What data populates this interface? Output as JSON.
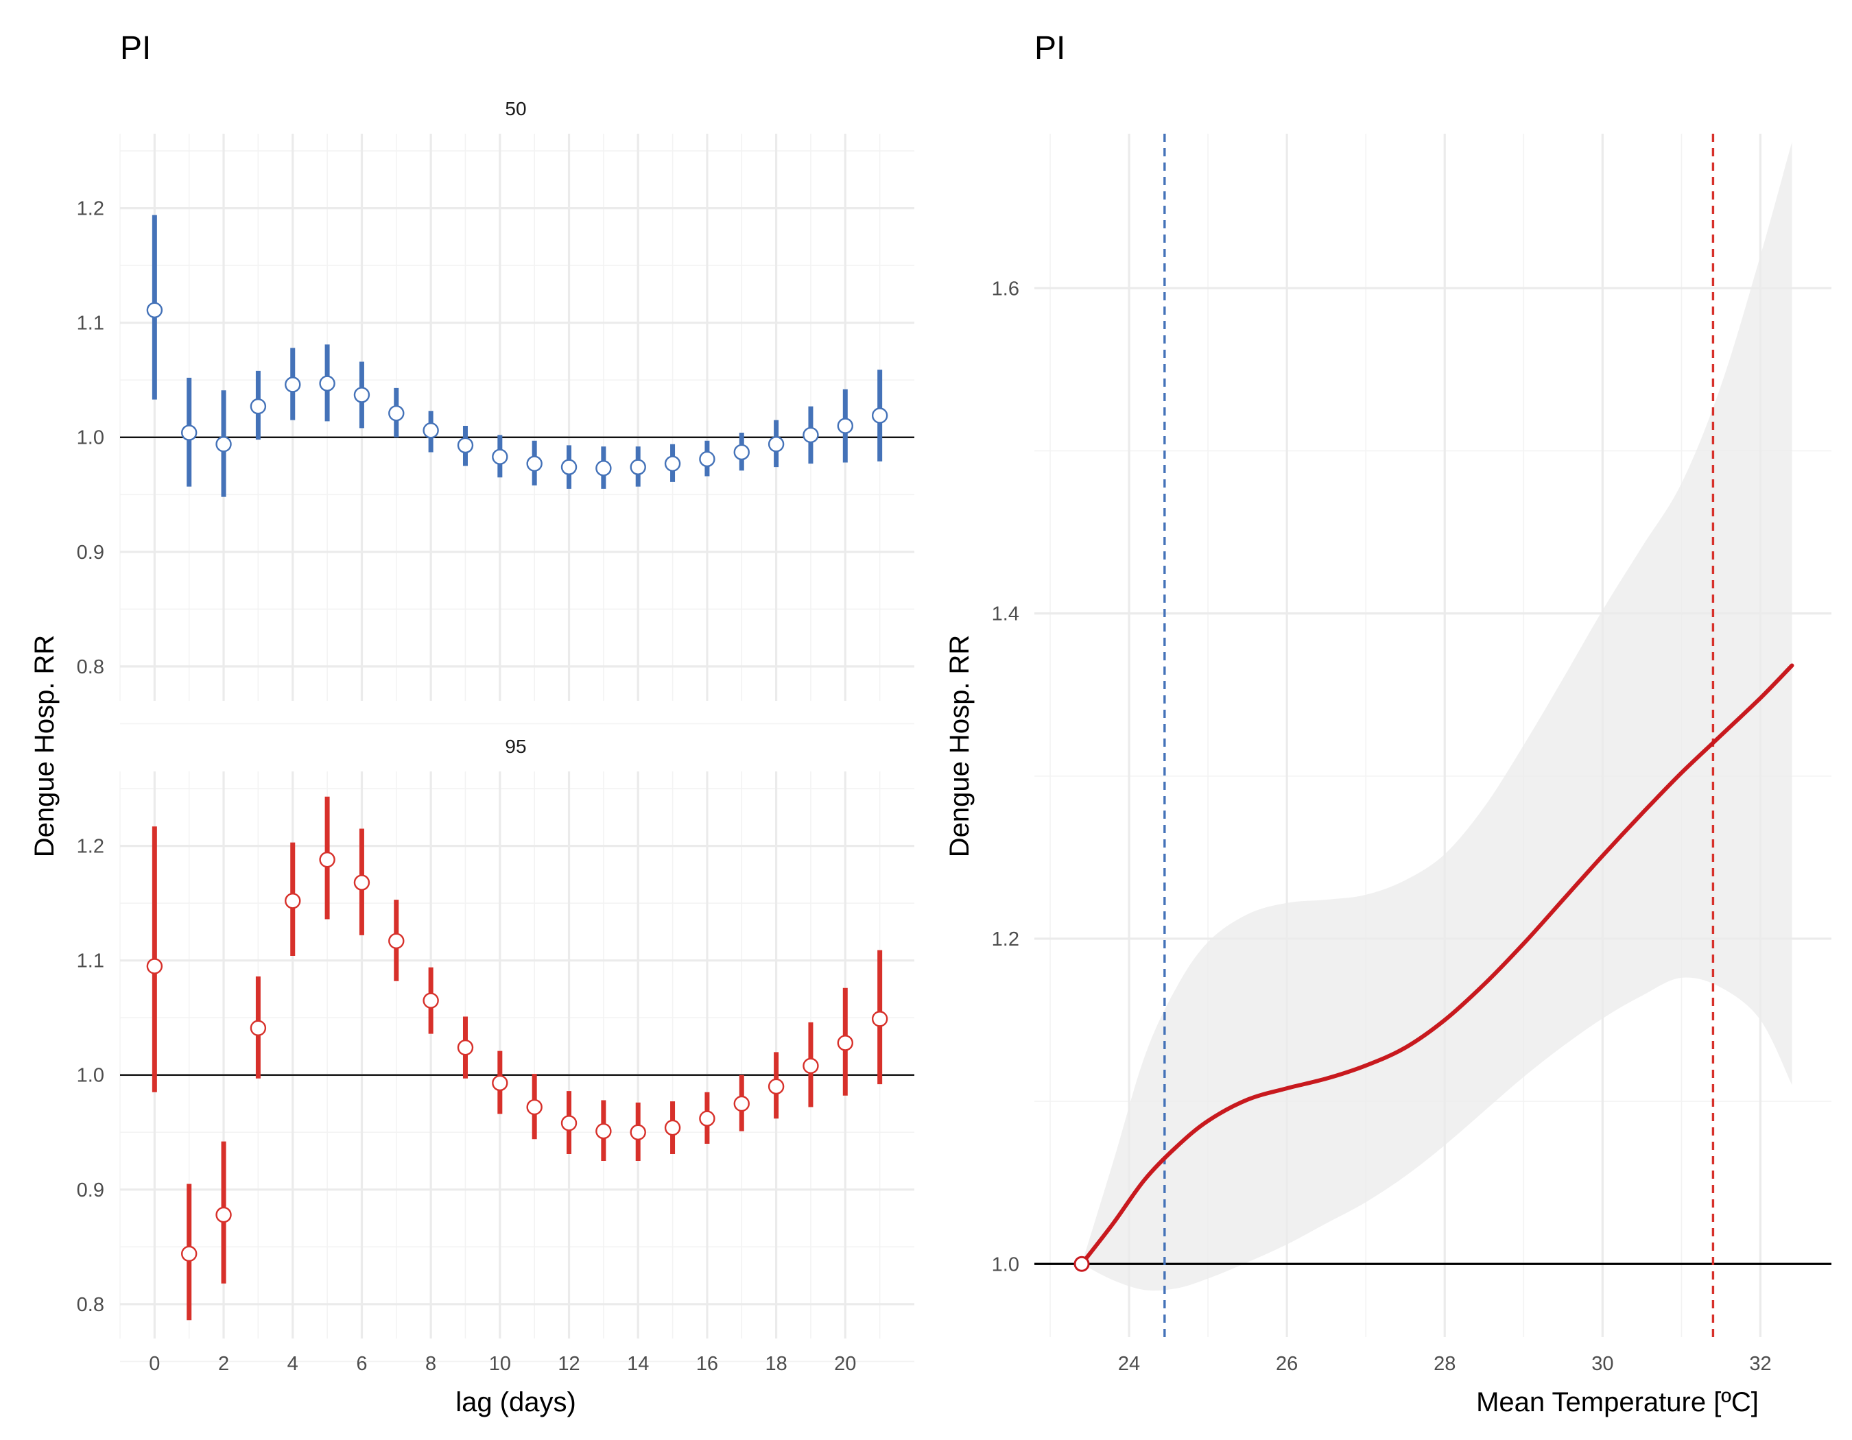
{
  "chart_data": [
    {
      "type": "errorbar",
      "title": "PI",
      "xlabel": "lag (days)",
      "ylabel": "Dengue Hosp. RR",
      "x_ticks": [
        0,
        2,
        4,
        6,
        8,
        10,
        12,
        14,
        16,
        18,
        20
      ],
      "y_ticks": [
        0.8,
        0.9,
        1.0,
        1.1,
        1.2
      ],
      "xlim": [
        -1,
        22
      ],
      "ylim": [
        0.77,
        1.265
      ],
      "reference_line": 1.0,
      "facets": [
        {
          "label": "50",
          "color": "#4472b8",
          "lag": [
            0,
            1,
            2,
            3,
            4,
            5,
            6,
            7,
            8,
            9,
            10,
            11,
            12,
            13,
            14,
            15,
            16,
            17,
            18,
            19,
            20,
            21
          ],
          "rr": [
            1.111,
            1.004,
            0.994,
            1.027,
            1.046,
            1.047,
            1.037,
            1.021,
            1.006,
            0.993,
            0.983,
            0.977,
            0.974,
            0.973,
            0.974,
            0.977,
            0.981,
            0.987,
            0.994,
            1.002,
            1.01,
            1.019
          ],
          "lower": [
            1.033,
            0.957,
            0.948,
            0.998,
            1.015,
            1.014,
            1.008,
            1.0,
            0.987,
            0.975,
            0.965,
            0.958,
            0.955,
            0.955,
            0.957,
            0.961,
            0.966,
            0.971,
            0.974,
            0.977,
            0.978,
            0.979
          ],
          "upper": [
            1.194,
            1.052,
            1.041,
            1.058,
            1.078,
            1.081,
            1.066,
            1.043,
            1.023,
            1.01,
            1.002,
            0.997,
            0.993,
            0.992,
            0.992,
            0.994,
            0.997,
            1.004,
            1.015,
            1.027,
            1.042,
            1.059
          ]
        },
        {
          "label": "95",
          "color": "#d7302a",
          "lag": [
            0,
            1,
            2,
            3,
            4,
            5,
            6,
            7,
            8,
            9,
            10,
            11,
            12,
            13,
            14,
            15,
            16,
            17,
            18,
            19,
            20,
            21
          ],
          "rr": [
            1.095,
            0.844,
            0.878,
            1.041,
            1.152,
            1.188,
            1.168,
            1.117,
            1.065,
            1.024,
            0.993,
            0.972,
            0.958,
            0.951,
            0.95,
            0.954,
            0.962,
            0.975,
            0.99,
            1.008,
            1.028,
            1.049
          ],
          "lower": [
            0.985,
            0.786,
            0.818,
            0.997,
            1.104,
            1.136,
            1.122,
            1.082,
            1.036,
            0.997,
            0.966,
            0.944,
            0.931,
            0.925,
            0.925,
            0.931,
            0.94,
            0.951,
            0.962,
            0.972,
            0.982,
            0.992
          ],
          "upper": [
            1.217,
            0.905,
            0.942,
            1.086,
            1.203,
            1.243,
            1.215,
            1.153,
            1.094,
            1.051,
            1.021,
            1.001,
            0.986,
            0.978,
            0.976,
            0.977,
            0.985,
            1.0,
            1.02,
            1.046,
            1.076,
            1.109
          ]
        }
      ]
    },
    {
      "type": "line",
      "title": "PI",
      "xlabel": "Mean Temperature [ºC]",
      "ylabel": "Dengue Hosp. RR",
      "x_ticks": [
        24,
        26,
        28,
        30,
        32
      ],
      "y_ticks": [
        1.0,
        1.2,
        1.4,
        1.6
      ],
      "xlim": [
        22.8,
        32.9
      ],
      "ylim": [
        0.955,
        1.695
      ],
      "reference_line": 1.0,
      "reference_point": {
        "x": 23.4,
        "y": 1.0
      },
      "vertical_lines": [
        {
          "x": 24.45,
          "color": "#4472b8"
        },
        {
          "x": 31.4,
          "color": "#d7302a"
        }
      ],
      "line_color": "#c8191e",
      "x": [
        23.4,
        23.8,
        24.2,
        24.6,
        25.0,
        25.5,
        26.0,
        26.5,
        27.0,
        27.5,
        28.0,
        28.5,
        29.0,
        29.5,
        30.0,
        30.5,
        31.0,
        31.5,
        32.0,
        32.4
      ],
      "rr": [
        1.0,
        1.025,
        1.052,
        1.072,
        1.088,
        1.101,
        1.108,
        1.114,
        1.122,
        1.133,
        1.15,
        1.172,
        1.197,
        1.224,
        1.251,
        1.277,
        1.302,
        1.325,
        1.348,
        1.368
      ],
      "lower": [
        1.0,
        0.99,
        0.984,
        0.985,
        0.991,
        1.001,
        1.012,
        1.025,
        1.038,
        1.054,
        1.073,
        1.094,
        1.115,
        1.134,
        1.151,
        1.165,
        1.176,
        1.17,
        1.15,
        1.11
      ],
      "upper": [
        1.0,
        1.063,
        1.128,
        1.17,
        1.198,
        1.215,
        1.222,
        1.224,
        1.227,
        1.236,
        1.252,
        1.281,
        1.319,
        1.36,
        1.402,
        1.441,
        1.48,
        1.54,
        1.62,
        1.69
      ]
    }
  ]
}
